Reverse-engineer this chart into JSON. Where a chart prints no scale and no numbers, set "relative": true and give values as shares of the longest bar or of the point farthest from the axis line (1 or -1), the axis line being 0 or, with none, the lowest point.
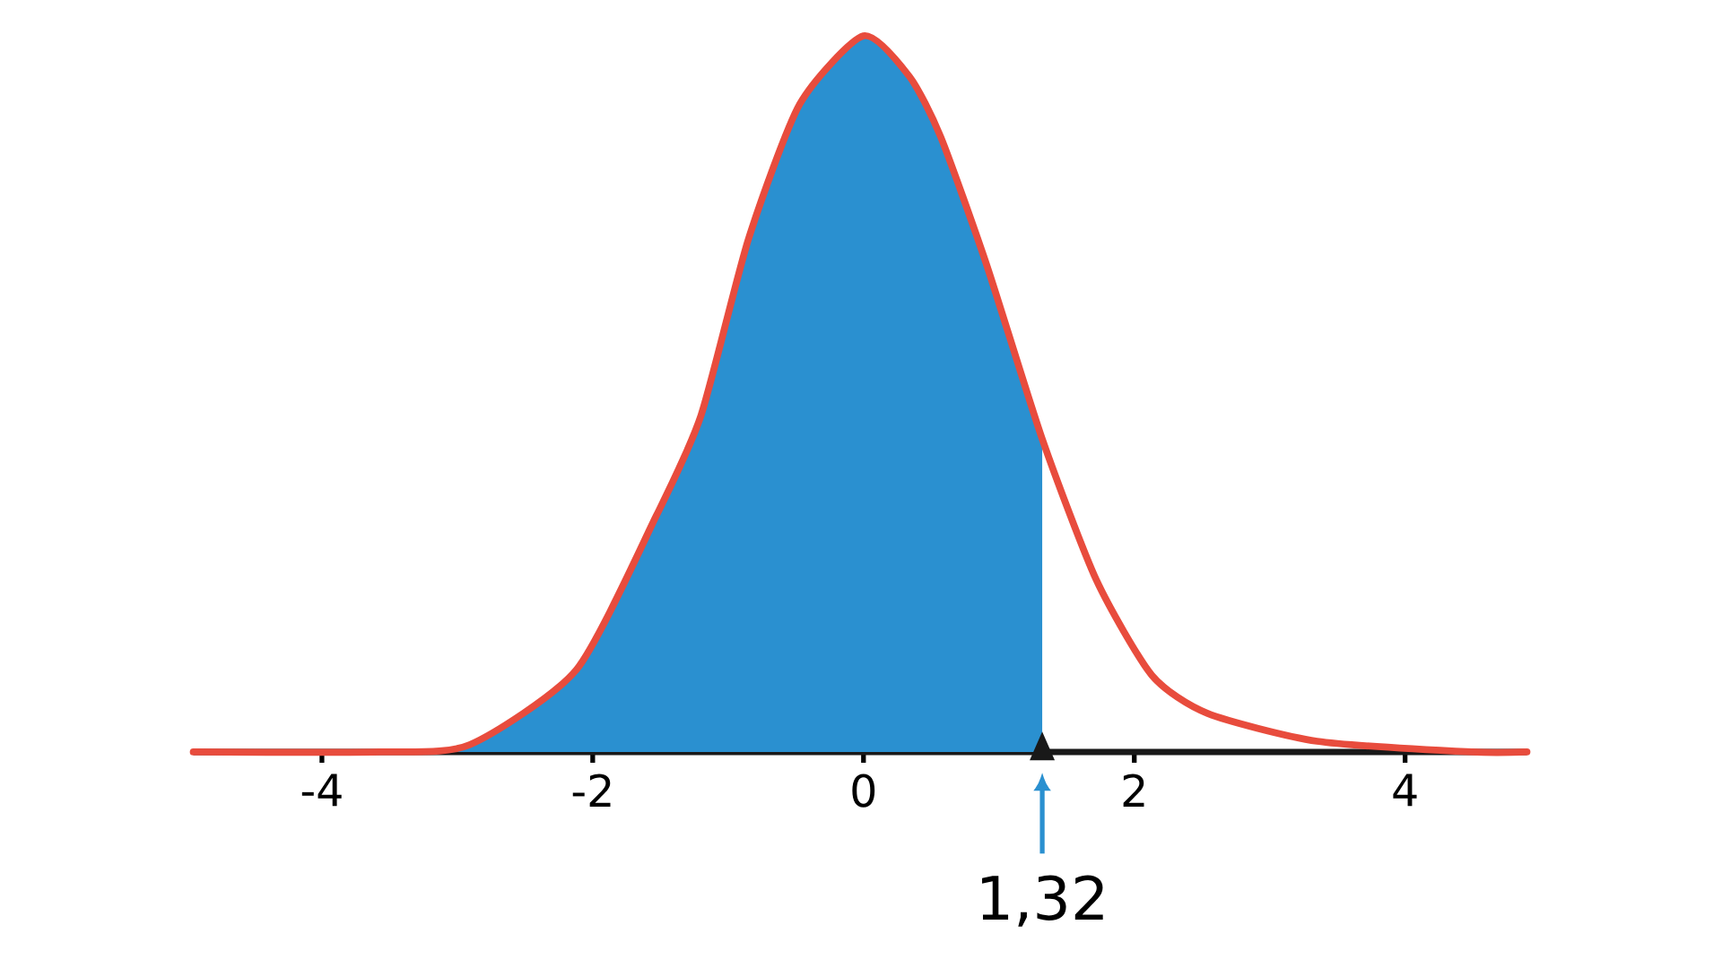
{
  "chart_data": {
    "type": "line",
    "relative": true,
    "xlim": [
      -4.95,
      4.9
    ],
    "xticks": [
      -4,
      -2,
      0,
      2,
      4
    ],
    "annotations": [
      {
        "text": "1,32",
        "x": 1.32,
        "y": 0
      }
    ],
    "series": [
      {
        "type": "area",
        "color": "#2a90d0",
        "x": [
          -4.95,
          -3.56,
          -2.91,
          -2.12,
          -1.53,
          -1.2,
          -0.85,
          -0.47,
          0,
          0.34,
          0.57,
          0.91,
          1.32
        ],
        "values": [
          0,
          0,
          0.01,
          0.115,
          0.33,
          0.47,
          0.716,
          0.905,
          1,
          0.943,
          0.859,
          0.68,
          0.437
        ]
      },
      {
        "color": "#e84c3d",
        "x": [
          -4.95,
          -3.56,
          -2.91,
          -2.12,
          -1.53,
          -1.2,
          -0.85,
          -0.47,
          0,
          0.34,
          0.57,
          0.91,
          1.32,
          1.72,
          2.13,
          2.54,
          3.35,
          4.49,
          4.9
        ],
        "values": [
          0,
          0,
          0.01,
          0.115,
          0.33,
          0.47,
          0.716,
          0.905,
          1,
          0.943,
          0.859,
          0.68,
          0.437,
          0.24,
          0.107,
          0.054,
          0.015,
          0,
          0
        ]
      }
    ]
  }
}
